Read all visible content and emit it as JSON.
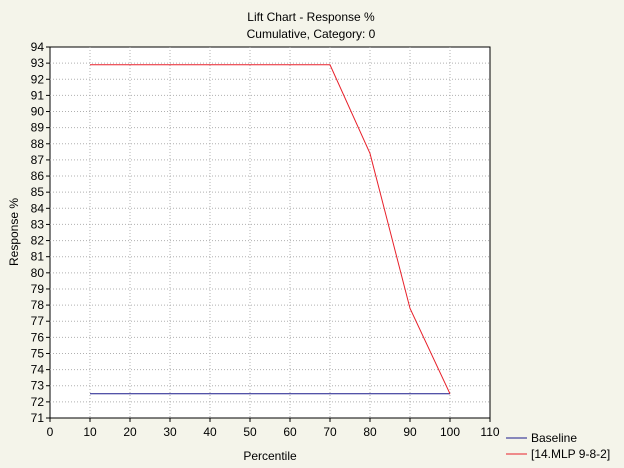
{
  "chart_data": {
    "type": "line",
    "title": "Lift Chart - Response %",
    "subtitle": "Cumulative, Category: 0",
    "xlabel": "Percentile",
    "ylabel": "Response %",
    "xlim": [
      0,
      110
    ],
    "ylim": [
      71,
      94
    ],
    "xticks": [
      "0",
      "10",
      "20",
      "30",
      "40",
      "50",
      "60",
      "70",
      "80",
      "90",
      "100",
      "110"
    ],
    "yticks": [
      "71",
      "72",
      "73",
      "74",
      "75",
      "76",
      "77",
      "78",
      "79",
      "80",
      "81",
      "82",
      "83",
      "84",
      "85",
      "86",
      "87",
      "88",
      "89",
      "90",
      "91",
      "92",
      "93",
      "94"
    ],
    "grid": true,
    "legend_position": "bottom-right",
    "series": [
      {
        "name": "Baseline",
        "color": "#1a1a8c",
        "x": [
          10,
          20,
          30,
          40,
          50,
          60,
          70,
          80,
          90,
          100
        ],
        "y": [
          72.5,
          72.5,
          72.5,
          72.5,
          72.5,
          72.5,
          72.5,
          72.5,
          72.5,
          72.5
        ]
      },
      {
        "name": "[14.MLP 9-8-2]",
        "color": "#e8202a",
        "x": [
          10,
          20,
          30,
          40,
          50,
          60,
          70,
          80,
          90,
          100
        ],
        "y": [
          92.9,
          92.9,
          92.9,
          92.9,
          92.9,
          92.9,
          92.9,
          87.4,
          77.8,
          72.5
        ]
      }
    ]
  }
}
